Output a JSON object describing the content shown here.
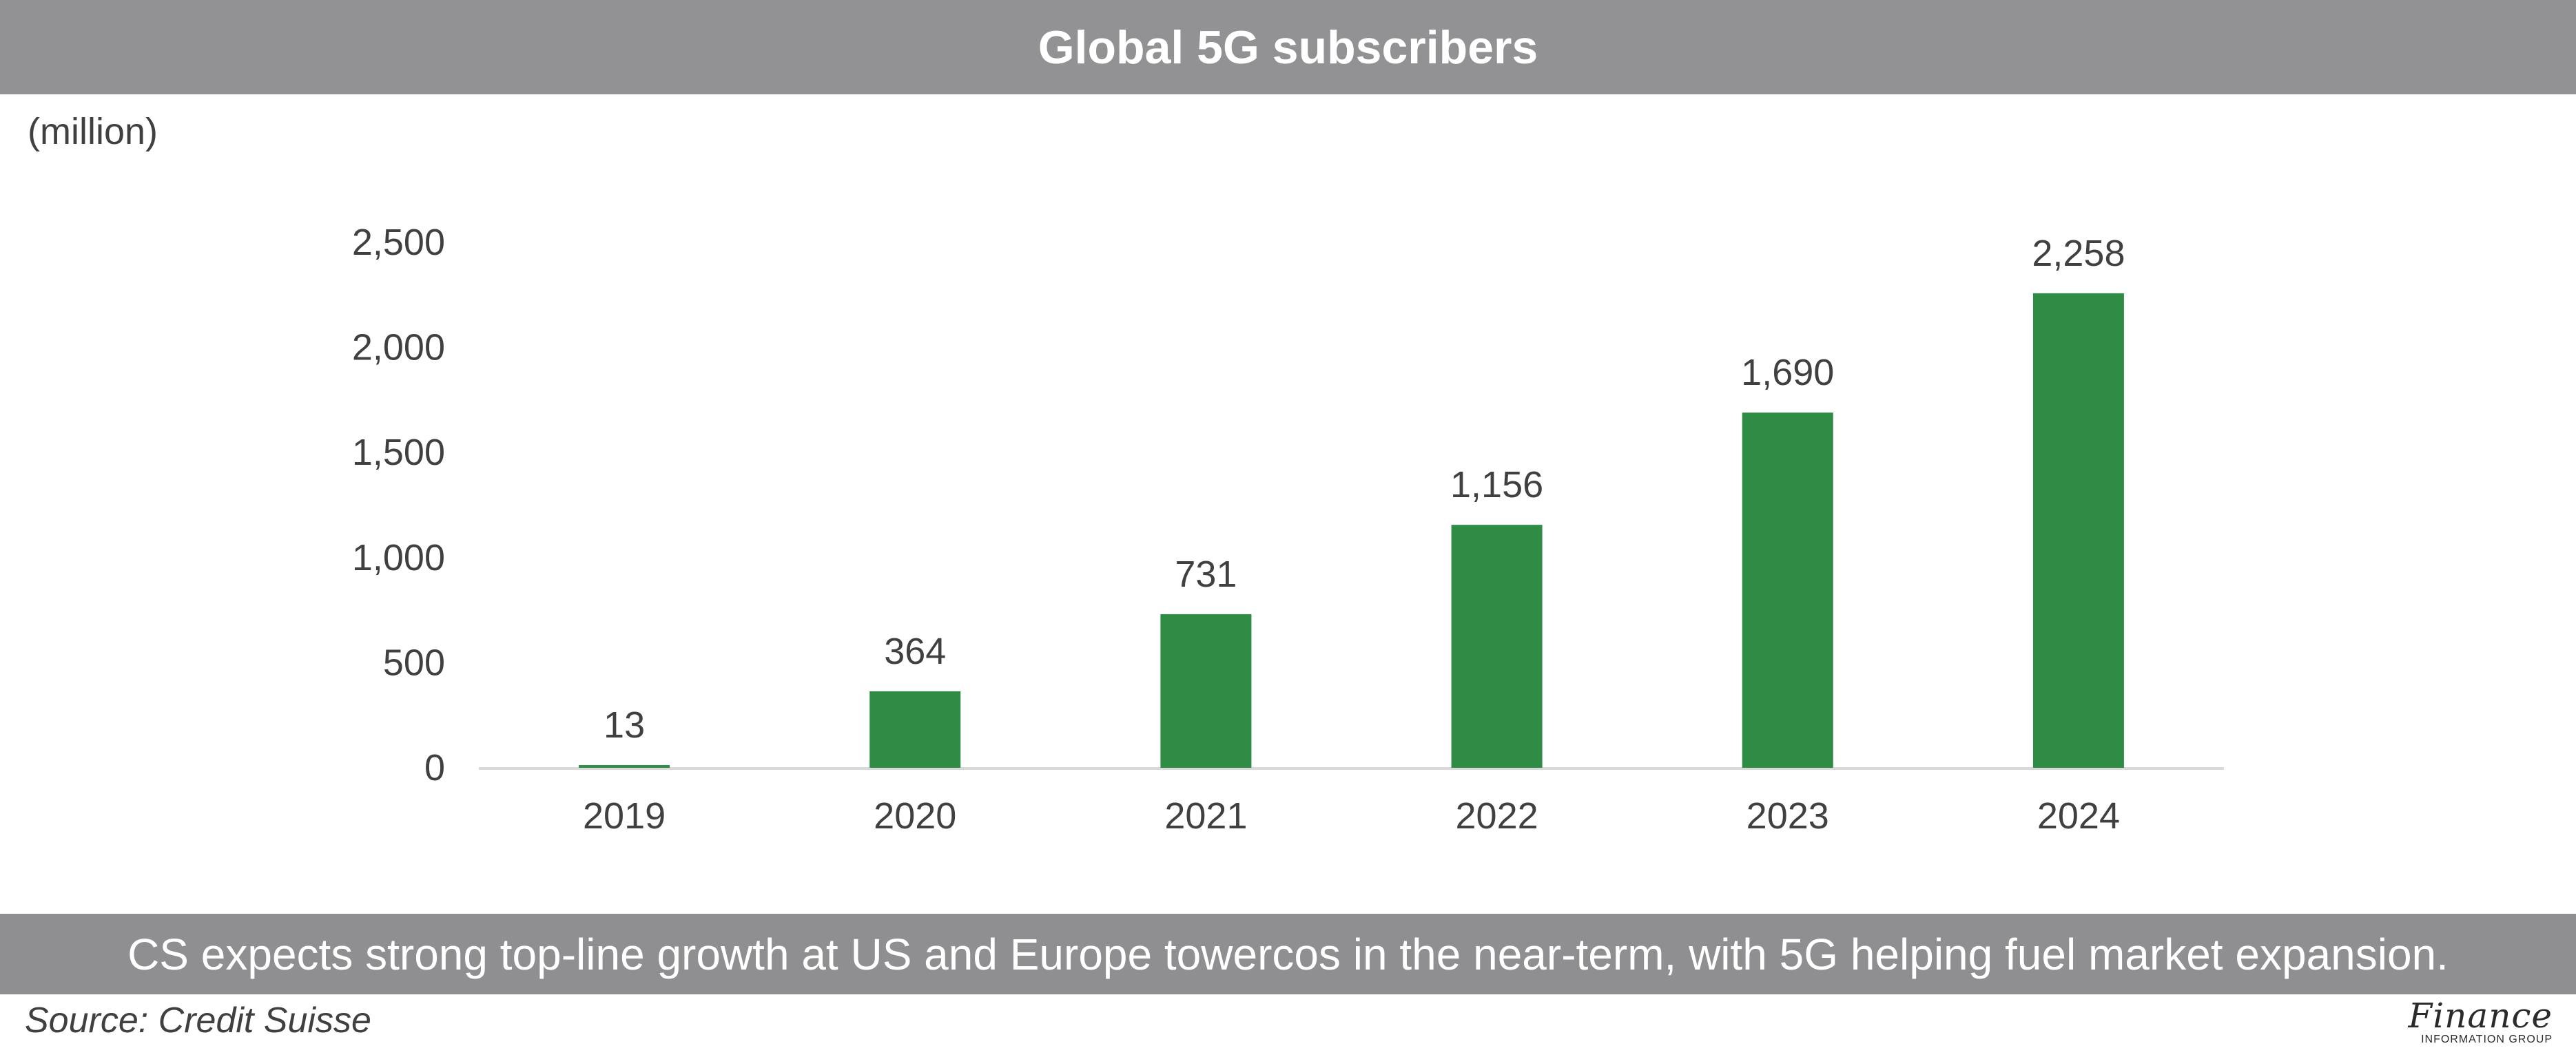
{
  "header": {
    "title": "Global 5G subscribers"
  },
  "unit_label": "(million)",
  "caption": "CS expects strong top-line growth at US and Europe towercos in the near-term, with 5G helping fuel market expansion.",
  "source": "Source: Credit Suisse",
  "logo": {
    "main": "Finance",
    "sub": "INFORMATION GROUP"
  },
  "colors": {
    "bar": "#2f8c45",
    "header_bg": "#929295",
    "axis": "#d9d9d9"
  },
  "chart_data": {
    "type": "bar",
    "title": "Global 5G subscribers",
    "categories": [
      "2019",
      "2020",
      "2021",
      "2022",
      "2023",
      "2024"
    ],
    "values": [
      13,
      364,
      731,
      1156,
      1690,
      2258
    ],
    "data_labels": [
      "13",
      "364",
      "731",
      "1,156",
      "1,690",
      "2,258"
    ],
    "ylim": [
      0,
      2500
    ],
    "y_ticks": [
      0,
      500,
      1000,
      1500,
      2000,
      2500
    ],
    "y_tick_labels": [
      "0",
      "500",
      "1,000",
      "1,500",
      "2,000",
      "2,500"
    ],
    "ylabel": "(million)",
    "xlabel": "",
    "grid": false,
    "legend": "none"
  }
}
